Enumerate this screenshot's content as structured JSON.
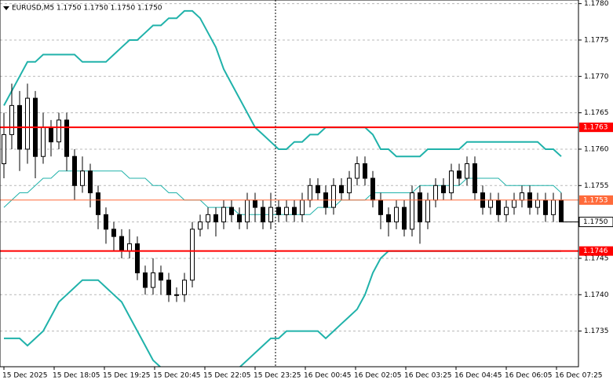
{
  "chart_data": {
    "type": "candlestick",
    "title": "EURUSD,M5  1.1750 1.1750 1.1750 1.1750",
    "ylim": [
      1.17301,
      1.17805
    ],
    "yticks": [
      {
        "value": 1.178,
        "label": "1.1780"
      },
      1.1775,
      {
        "value": 1.177,
        "label": "1.1770"
      },
      1.1765,
      {
        "value": 1.176,
        "label": "1.1760"
      },
      1.1755,
      {
        "value": 1.175,
        "label": "1.1750"
      },
      1.1745,
      {
        "value": 1.174,
        "label": "1.1740"
      },
      1.1735
    ],
    "grid": true,
    "xlabels": [
      "15 Dec 2025",
      "15 Dec 18:05",
      "15 Dec 19:25",
      "15 Dec 20:45",
      "15 Dec 22:05",
      "15 Dec 23:25",
      "16 Dec 00:45",
      "16 Dec 02:05",
      "16 Dec 03:25",
      "16 Dec 04:45",
      "16 Dec 06:05",
      "16 Dec 07:25"
    ],
    "open": [
      1.1758,
      1.1762,
      1.1766,
      1.176,
      1.1767,
      1.1759,
      1.1763,
      1.1761,
      1.1764,
      1.1759,
      1.1755,
      1.1757,
      1.1754,
      1.1751,
      1.1749,
      1.1748,
      1.1746,
      1.1747,
      1.1743,
      1.1741,
      1.1743,
      1.1742,
      1.174,
      1.174,
      1.1742,
      1.1749,
      1.175,
      1.1751,
      1.175,
      1.1752,
      1.1751,
      1.175,
      1.1753,
      1.1752,
      1.175,
      1.1752,
      1.1751,
      1.1752,
      1.1751,
      1.1753,
      1.1755,
      1.1754,
      1.1752,
      1.1755,
      1.1754,
      1.1756,
      1.1758,
      1.1756,
      1.1753,
      1.1751,
      1.175,
      1.1752,
      1.1749,
      1.1754,
      1.175,
      1.1753,
      1.1755,
      1.1754,
      1.1757,
      1.1756,
      1.1758,
      1.1754,
      1.1752,
      1.1753,
      1.1751,
      1.1752,
      1.1753,
      1.1754,
      1.1752,
      1.1753,
      1.1751,
      1.1753
    ],
    "high": [
      1.1765,
      1.1769,
      1.1768,
      1.1769,
      1.1768,
      1.1765,
      1.1764,
      1.1765,
      1.1765,
      1.176,
      1.1759,
      1.1758,
      1.1755,
      1.1752,
      1.175,
      1.1749,
      1.1749,
      1.1748,
      1.1744,
      1.1745,
      1.1744,
      1.1743,
      1.1741,
      1.1743,
      1.175,
      1.1751,
      1.1752,
      1.1752,
      1.1753,
      1.1753,
      1.1752,
      1.1754,
      1.1754,
      1.1753,
      1.1754,
      1.1753,
      1.1753,
      1.1753,
      1.1754,
      1.1756,
      1.1756,
      1.1755,
      1.1756,
      1.1756,
      1.1757,
      1.1759,
      1.1759,
      1.1757,
      1.1754,
      1.1752,
      1.1753,
      1.1753,
      1.1755,
      1.1755,
      1.1754,
      1.1756,
      1.1756,
      1.1758,
      1.1758,
      1.1759,
      1.1759,
      1.1755,
      1.1754,
      1.1754,
      1.1753,
      1.1754,
      1.1755,
      1.1755,
      1.1754,
      1.1754,
      1.1754,
      1.1754
    ],
    "low": [
      1.1756,
      1.176,
      1.1757,
      1.1758,
      1.1756,
      1.1758,
      1.1759,
      1.176,
      1.1757,
      1.1753,
      1.1754,
      1.1752,
      1.1749,
      1.1747,
      1.1746,
      1.1745,
      1.1745,
      1.1742,
      1.174,
      1.174,
      1.174,
      1.1739,
      1.1739,
      1.1739,
      1.1741,
      1.1748,
      1.1749,
      1.1748,
      1.1749,
      1.175,
      1.1749,
      1.1749,
      1.175,
      1.1749,
      1.1749,
      1.175,
      1.175,
      1.175,
      1.175,
      1.1752,
      1.1753,
      1.1751,
      1.1751,
      1.1753,
      1.1753,
      1.1755,
      1.1755,
      1.1752,
      1.1749,
      1.1748,
      1.1749,
      1.1748,
      1.1748,
      1.1747,
      1.1749,
      1.1752,
      1.1753,
      1.1753,
      1.1755,
      1.1755,
      1.1753,
      1.1751,
      1.1751,
      1.175,
      1.175,
      1.1751,
      1.1752,
      1.1751,
      1.1751,
      1.175,
      1.175,
      1.175
    ],
    "close": [
      1.1762,
      1.1766,
      1.176,
      1.1767,
      1.1759,
      1.1763,
      1.1761,
      1.1764,
      1.1759,
      1.1755,
      1.1757,
      1.1754,
      1.1751,
      1.1749,
      1.1748,
      1.1746,
      1.1747,
      1.1743,
      1.1741,
      1.1743,
      1.1742,
      1.174,
      1.174,
      1.1742,
      1.1749,
      1.175,
      1.1751,
      1.175,
      1.1752,
      1.1751,
      1.175,
      1.1753,
      1.1752,
      1.175,
      1.1752,
      1.1751,
      1.1752,
      1.1751,
      1.1753,
      1.1755,
      1.1754,
      1.1752,
      1.1755,
      1.1754,
      1.1756,
      1.1758,
      1.1756,
      1.1753,
      1.1751,
      1.175,
      1.1752,
      1.1749,
      1.1754,
      1.175,
      1.1753,
      1.1755,
      1.1754,
      1.1757,
      1.1756,
      1.1758,
      1.1754,
      1.1752,
      1.1753,
      1.1751,
      1.1752,
      1.1753,
      1.1754,
      1.1752,
      1.1753,
      1.1751,
      1.1753,
      1.175
    ],
    "bands": {
      "color": "#20b2aa",
      "upper": [
        1.1766,
        1.1768,
        1.177,
        1.1772,
        1.1772,
        1.1773,
        1.1773,
        1.1773,
        1.1773,
        1.1773,
        1.1772,
        1.1772,
        1.1772,
        1.1772,
        1.1773,
        1.1774,
        1.1775,
        1.1775,
        1.1776,
        1.1777,
        1.1777,
        1.1778,
        1.1778,
        1.1779,
        1.1779,
        1.1778,
        1.1776,
        1.1774,
        1.1771,
        1.1769,
        1.1767,
        1.1765,
        1.1763,
        1.1762,
        1.1761,
        1.176,
        1.176,
        1.1761,
        1.1761,
        1.1762,
        1.1762,
        1.1763,
        1.1763,
        1.1763,
        1.1763,
        1.1763,
        1.1763,
        1.1762,
        1.176,
        1.176,
        1.1759,
        1.1759,
        1.1759,
        1.1759,
        1.176,
        1.176,
        1.176,
        1.176,
        1.176,
        1.1761,
        1.1761,
        1.1761,
        1.1761,
        1.1761,
        1.1761,
        1.1761,
        1.1761,
        1.1761,
        1.1761,
        1.176,
        1.176,
        1.1759
      ],
      "middle": [
        1.1752,
        1.1753,
        1.1754,
        1.1754,
        1.1755,
        1.1756,
        1.1756,
        1.1757,
        1.1757,
        1.1757,
        1.1757,
        1.1757,
        1.1757,
        1.1757,
        1.1757,
        1.1757,
        1.1756,
        1.1756,
        1.1756,
        1.1755,
        1.1755,
        1.1754,
        1.1754,
        1.1753,
        1.1753,
        1.1753,
        1.1752,
        1.1752,
        1.1752,
        1.1752,
        1.1751,
        1.1751,
        1.1751,
        1.1751,
        1.1751,
        1.1751,
        1.1751,
        1.1751,
        1.1751,
        1.1751,
        1.1752,
        1.1752,
        1.1752,
        1.1753,
        1.1753,
        1.1753,
        1.1753,
        1.1754,
        1.1754,
        1.1754,
        1.1754,
        1.1754,
        1.1754,
        1.1755,
        1.1755,
        1.1755,
        1.1755,
        1.1755,
        1.1755,
        1.1756,
        1.1756,
        1.1756,
        1.1756,
        1.1756,
        1.1755,
        1.1755,
        1.1755,
        1.1755,
        1.1755,
        1.1755,
        1.1755,
        1.1754
      ],
      "lower": [
        1.1734,
        1.1734,
        1.1734,
        1.1733,
        1.1734,
        1.1735,
        1.1737,
        1.1739,
        1.174,
        1.1741,
        1.1742,
        1.1742,
        1.1742,
        1.1741,
        1.174,
        1.1739,
        1.1737,
        1.1735,
        1.1733,
        1.1731,
        1.173,
        1.173,
        1.1729,
        1.1729,
        1.1728,
        1.1728,
        1.1728,
        1.1728,
        1.1728,
        1.1729,
        1.173,
        1.1731,
        1.1732,
        1.1733,
        1.1734,
        1.1734,
        1.1735,
        1.1735,
        1.1735,
        1.1735,
        1.1735,
        1.1734,
        1.1735,
        1.1736,
        1.1737,
        1.1738,
        1.174,
        1.1743,
        1.1745,
        1.1746,
        1.1746,
        1.1746,
        1.1746,
        1.1746,
        1.1746,
        1.1746,
        1.1746,
        1.1746,
        1.1746,
        1.1746,
        1.1746,
        1.1746,
        1.1746,
        1.1746,
        1.1746,
        1.1746,
        1.1746,
        1.1746,
        1.1746,
        1.1746,
        1.1746,
        1.1746
      ]
    },
    "levels": [
      {
        "value": 1.1763,
        "color": "#ff0000"
      },
      {
        "value": 1.1753,
        "color": "#ff6a3a"
      },
      {
        "value": 1.1746,
        "color": "#ff0000"
      }
    ],
    "price": {
      "value": 1.175,
      "label": "1.1750"
    }
  }
}
